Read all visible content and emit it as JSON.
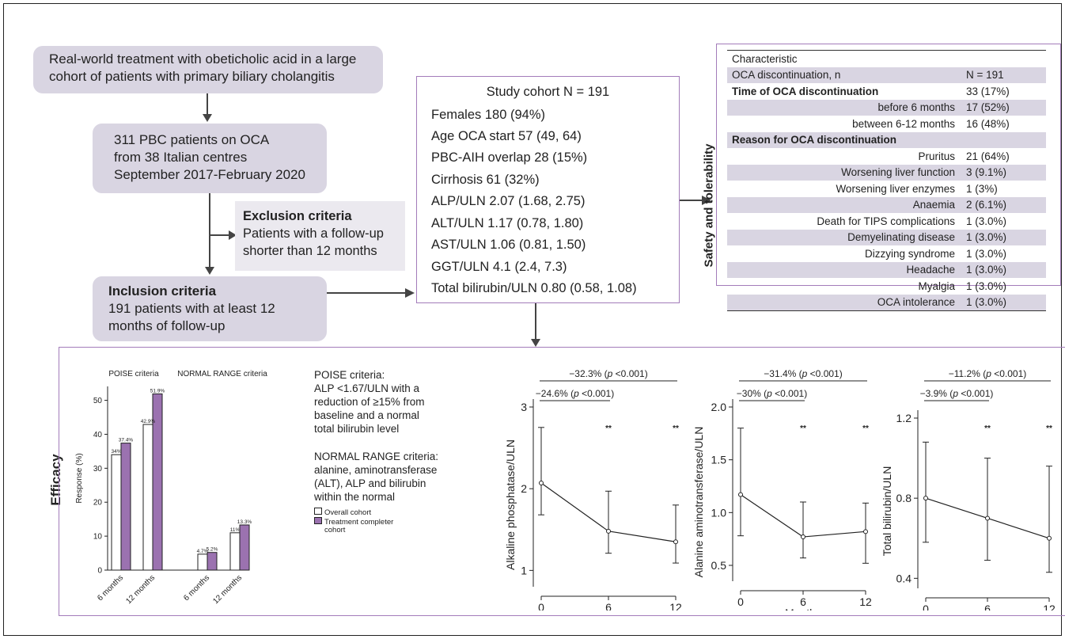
{
  "flow": {
    "box1": [
      "Real-world treatment with obeticholic acid in a large",
      "cohort of patients with primary biliary cholangitis"
    ],
    "box2": [
      "311 PBC patients on OCA",
      "from 38 Italian centres",
      "September 2017-February 2020"
    ],
    "exclusion": {
      "title": "Exclusion criteria",
      "lines": [
        "Patients with a follow-up",
        "shorter than 12 months"
      ]
    },
    "inclusion": {
      "title": "Inclusion criteria",
      "lines": [
        "191 patients with at least 12",
        "months of follow-up"
      ]
    }
  },
  "cohort": {
    "title": "Study cohort N = 191",
    "items": [
      "Females 180 (94%)",
      "Age OCA start  57 (49, 64)",
      "PBC-AIH overlap 28 (15%)",
      "Cirrhosis 61 (32%)",
      "ALP/ULN  2.07 (1.68, 2.75)",
      "ALT/ULN 1.17 (0.78, 1.80)",
      "AST/ULN 1.06 (0.81, 1.50)",
      "GGT/ULN 4.1 (2.4, 7.3)",
      "Total bilirubin/ULN 0.80 (0.58, 1.08)"
    ]
  },
  "safety": {
    "side_label": "Safety and tolerability",
    "rows": [
      {
        "label": "Characteristic",
        "value": "",
        "shade": false,
        "bold": false,
        "align": "left"
      },
      {
        "label": "OCA discontinuation, n",
        "value": "N = 191",
        "shade": true,
        "bold": false,
        "align": "left"
      },
      {
        "label": "Time of OCA discontinuation",
        "value": "33 (17%)",
        "shade": false,
        "bold": true,
        "align": "left"
      },
      {
        "label": "before 6 months",
        "value": "17 (52%)",
        "shade": true,
        "bold": false,
        "align": "right"
      },
      {
        "label": "between 6-12 months",
        "value": "16 (48%)",
        "shade": false,
        "bold": false,
        "align": "right"
      },
      {
        "label": "Reason for OCA discontinuation",
        "value": "",
        "shade": true,
        "bold": true,
        "align": "left"
      },
      {
        "label": "Pruritus",
        "value": "21 (64%)",
        "shade": false,
        "bold": false,
        "align": "right"
      },
      {
        "label": "Worsening liver function",
        "value": "3 (9.1%)",
        "shade": true,
        "bold": false,
        "align": "right"
      },
      {
        "label": "Worsening liver enzymes",
        "value": "1 (3%)",
        "shade": false,
        "bold": false,
        "align": "right"
      },
      {
        "label": "Anaemia",
        "value": "2 (6.1%)",
        "shade": true,
        "bold": false,
        "align": "right"
      },
      {
        "label": "Death for TIPS complications",
        "value": "1 (3.0%)",
        "shade": false,
        "bold": false,
        "align": "right"
      },
      {
        "label": "Demyelinating disease",
        "value": "1 (3.0%)",
        "shade": true,
        "bold": false,
        "align": "right"
      },
      {
        "label": "Dizzying syndrome",
        "value": "1 (3.0%)",
        "shade": false,
        "bold": false,
        "align": "right"
      },
      {
        "label": "Headache",
        "value": "1 (3.0%)",
        "shade": true,
        "bold": false,
        "align": "right"
      },
      {
        "label": "Myalgia",
        "value": "1 (3.0%)",
        "shade": false,
        "bold": false,
        "align": "right"
      },
      {
        "label": "OCA intolerance",
        "value": "1 (3.0%)",
        "shade": true,
        "bold": false,
        "align": "right"
      }
    ]
  },
  "efficacy": {
    "side_label": "Efficacy",
    "poise_text": [
      "POISE criteria:",
      "ALP <1.67/ULN with a",
      "reduction of ≥15% from",
      "baseline and a normal",
      "total bilirubin level"
    ],
    "normal_text": [
      "NORMAL RANGE criteria:",
      "alanine, aminotransferase",
      "(ALT), ALP and bilirubin",
      "within the normal"
    ],
    "legend": [
      "Overall cohort",
      "Treatment completer",
      "cohort"
    ]
  },
  "colors": {
    "purple": "#9b72b0",
    "box_fill": "#d9d5e2",
    "border": "#a37cba"
  },
  "chart_data": [
    {
      "type": "bar",
      "ylabel": "Response (%)",
      "ylim": [
        0,
        55
      ],
      "yticks": [
        "0",
        "10",
        "20",
        "30",
        "40",
        "50"
      ],
      "group_titles": [
        "POISE criteria",
        "NORMAL RANGE criteria"
      ],
      "categories": [
        "6 months",
        "12 months",
        "6 months",
        "12 months"
      ],
      "series": [
        {
          "name": "Overall cohort",
          "values": [
            34,
            42.9,
            4.7,
            11
          ],
          "labels": [
            "34%",
            "42.9%",
            "4.7%",
            "11%"
          ]
        },
        {
          "name": "Treatment completer cohort",
          "values": [
            37.4,
            51.9,
            5.2,
            13.3
          ],
          "labels": [
            "37.4%",
            "51.9%",
            "5.2%",
            "13.3%"
          ]
        }
      ]
    },
    {
      "type": "line",
      "ylabel": "Alkaline phosphatase/ULN",
      "xlabel": "Months",
      "x": [
        0,
        6,
        12
      ],
      "xticks": [
        "0",
        "6",
        "12"
      ],
      "ylim": [
        0.8,
        3.0
      ],
      "yticks": [
        "1",
        "2",
        "3"
      ],
      "yticks_values": [
        1,
        2,
        3
      ],
      "median": [
        2.07,
        1.48,
        1.35
      ],
      "lower": [
        1.68,
        1.21,
        1.09
      ],
      "upper": [
        2.75,
        1.97,
        1.8
      ],
      "stars": [
        "",
        "**",
        "**"
      ],
      "brackets": [
        {
          "text": "−32.3% (",
          "p": "p",
          "tail": " <0.001)",
          "to": 12
        },
        {
          "text": "−24.6% (",
          "p": "p",
          "tail": " <0.001)",
          "to": 6
        }
      ]
    },
    {
      "type": "line",
      "ylabel": "Alanine aminotransferase/ULN",
      "xlabel": "Months",
      "x": [
        0,
        6,
        12
      ],
      "xticks": [
        "0",
        "6",
        "12"
      ],
      "ylim": [
        0.35,
        2.0
      ],
      "yticks": [
        "0.5",
        "1.0",
        "1.5",
        "2.0"
      ],
      "yticks_values": [
        0.5,
        1.0,
        1.5,
        2.0
      ],
      "median": [
        1.17,
        0.77,
        0.82
      ],
      "lower": [
        0.78,
        0.57,
        0.52
      ],
      "upper": [
        1.8,
        1.1,
        1.09
      ],
      "stars": [
        "",
        "**",
        "**"
      ],
      "brackets": [
        {
          "text": "−31.4% (",
          "p": "p",
          "tail": " <0.001)",
          "to": 12
        },
        {
          "text": "−30% (",
          "p": "p",
          "tail": " <0.001)",
          "to": 6
        }
      ]
    },
    {
      "type": "line",
      "ylabel": "Total bilirubin/ULN",
      "xlabel": "Months",
      "x": [
        0,
        6,
        12
      ],
      "xticks": [
        "0",
        "6",
        "12"
      ],
      "ylim": [
        0.35,
        1.2
      ],
      "yticks": [
        "0.4",
        "0.8",
        "1.2"
      ],
      "yticks_values": [
        0.4,
        0.8,
        1.2
      ],
      "median": [
        0.8,
        0.7,
        0.6
      ],
      "lower": [
        0.58,
        0.49,
        0.43
      ],
      "upper": [
        1.08,
        1.0,
        0.96
      ],
      "stars": [
        "",
        "**",
        "**"
      ],
      "brackets": [
        {
          "text": "−11.2% (",
          "p": "p",
          "tail": " <0.001)",
          "to": 12
        },
        {
          "text": "−3.9% (",
          "p": "p",
          "tail": " <0.001)",
          "to": 6
        }
      ]
    }
  ]
}
